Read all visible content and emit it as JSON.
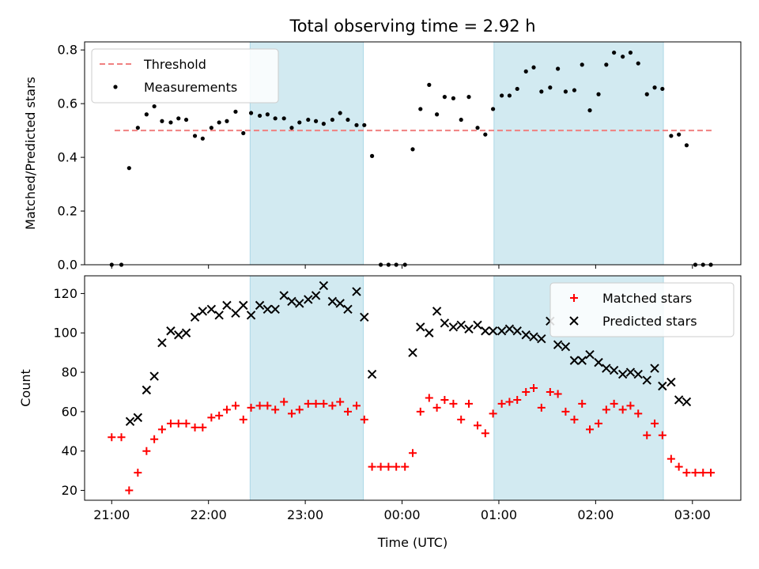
{
  "chart_data": {
    "type": "scatter",
    "title": "Total observing time = 2.92 h",
    "xlabel": "Time (UTC)",
    "x_ticks": [
      "21:00",
      "22:00",
      "23:00",
      "00:00",
      "01:00",
      "02:00",
      "03:00"
    ],
    "xlim": [
      -0.28,
      6.5
    ],
    "shaded_intervals": [
      [
        1.43,
        2.6
      ],
      [
        3.95,
        5.7
      ]
    ],
    "shade_color": "#add8e6",
    "panels": [
      {
        "ylabel": "Matched/Predicted stars",
        "ylim": [
          0,
          0.83
        ],
        "yticks": [
          "0.0",
          "0.2",
          "0.4",
          "0.6",
          "0.8"
        ],
        "threshold": {
          "name": "Threshold",
          "value": 0.5,
          "x_range": [
            0.03,
            6.2
          ],
          "color": "#f08080"
        },
        "series": [
          {
            "name": "Measurements",
            "marker": "dot",
            "color": "#000000",
            "points": [
              [
                0.0,
                0.0
              ],
              [
                0.1,
                0.0
              ],
              [
                0.18,
                0.36
              ],
              [
                0.27,
                0.51
              ],
              [
                0.36,
                0.56
              ],
              [
                0.44,
                0.59
              ],
              [
                0.52,
                0.535
              ],
              [
                0.61,
                0.53
              ],
              [
                0.69,
                0.545
              ],
              [
                0.77,
                0.54
              ],
              [
                0.86,
                0.48
              ],
              [
                0.94,
                0.47
              ],
              [
                1.03,
                0.51
              ],
              [
                1.11,
                0.53
              ],
              [
                1.19,
                0.535
              ],
              [
                1.28,
                0.57
              ],
              [
                1.36,
                0.49
              ],
              [
                1.44,
                0.565
              ],
              [
                1.53,
                0.555
              ],
              [
                1.61,
                0.56
              ],
              [
                1.69,
                0.545
              ],
              [
                1.78,
                0.545
              ],
              [
                1.86,
                0.51
              ],
              [
                1.94,
                0.53
              ],
              [
                2.03,
                0.54
              ],
              [
                2.11,
                0.535
              ],
              [
                2.19,
                0.525
              ],
              [
                2.28,
                0.54
              ],
              [
                2.36,
                0.565
              ],
              [
                2.44,
                0.54
              ],
              [
                2.53,
                0.52
              ],
              [
                2.61,
                0.52
              ],
              [
                2.69,
                0.405
              ],
              [
                2.78,
                0.0
              ],
              [
                2.86,
                0.0
              ],
              [
                2.94,
                0.0
              ],
              [
                3.03,
                0.0
              ],
              [
                3.11,
                0.43
              ],
              [
                3.19,
                0.58
              ],
              [
                3.28,
                0.67
              ],
              [
                3.36,
                0.56
              ],
              [
                3.44,
                0.625
              ],
              [
                3.53,
                0.62
              ],
              [
                3.61,
                0.54
              ],
              [
                3.69,
                0.625
              ],
              [
                3.78,
                0.51
              ],
              [
                3.86,
                0.485
              ],
              [
                3.94,
                0.58
              ],
              [
                4.03,
                0.63
              ],
              [
                4.11,
                0.63
              ],
              [
                4.19,
                0.655
              ],
              [
                4.28,
                0.72
              ],
              [
                4.36,
                0.735
              ],
              [
                4.44,
                0.645
              ],
              [
                4.53,
                0.66
              ],
              [
                4.61,
                0.73
              ],
              [
                4.69,
                0.645
              ],
              [
                4.78,
                0.65
              ],
              [
                4.86,
                0.745
              ],
              [
                4.94,
                0.575
              ],
              [
                5.03,
                0.635
              ],
              [
                5.11,
                0.745
              ],
              [
                5.19,
                0.79
              ],
              [
                5.28,
                0.775
              ],
              [
                5.36,
                0.79
              ],
              [
                5.44,
                0.75
              ],
              [
                5.53,
                0.635
              ],
              [
                5.61,
                0.66
              ],
              [
                5.69,
                0.655
              ],
              [
                5.78,
                0.48
              ],
              [
                5.86,
                0.485
              ],
              [
                5.94,
                0.445
              ],
              [
                6.03,
                0.0
              ],
              [
                6.11,
                0.0
              ],
              [
                6.19,
                0.0
              ]
            ]
          }
        ],
        "legend": {
          "placement": "upper-left",
          "entries": [
            "Threshold",
            "Measurements"
          ]
        }
      },
      {
        "ylabel": "Count",
        "ylim": [
          15,
          129
        ],
        "yticks": [
          "20",
          "40",
          "60",
          "80",
          "100",
          "120"
        ],
        "series": [
          {
            "name": "Matched stars",
            "marker": "plus",
            "color": "#ff0000",
            "points": [
              [
                0.0,
                47
              ],
              [
                0.1,
                47
              ],
              [
                0.18,
                20
              ],
              [
                0.27,
                29
              ],
              [
                0.36,
                40
              ],
              [
                0.44,
                46
              ],
              [
                0.52,
                51
              ],
              [
                0.61,
                54
              ],
              [
                0.69,
                54
              ],
              [
                0.77,
                54
              ],
              [
                0.86,
                52
              ],
              [
                0.94,
                52
              ],
              [
                1.03,
                57
              ],
              [
                1.11,
                58
              ],
              [
                1.19,
                61
              ],
              [
                1.28,
                63
              ],
              [
                1.36,
                56
              ],
              [
                1.44,
                62
              ],
              [
                1.53,
                63
              ],
              [
                1.61,
                63
              ],
              [
                1.69,
                61
              ],
              [
                1.78,
                65
              ],
              [
                1.86,
                59
              ],
              [
                1.94,
                61
              ],
              [
                2.03,
                64
              ],
              [
                2.11,
                64
              ],
              [
                2.19,
                64
              ],
              [
                2.28,
                63
              ],
              [
                2.36,
                65
              ],
              [
                2.44,
                60
              ],
              [
                2.53,
                63
              ],
              [
                2.61,
                56
              ],
              [
                2.69,
                32
              ],
              [
                2.78,
                32
              ],
              [
                2.86,
                32
              ],
              [
                2.94,
                32
              ],
              [
                3.03,
                32
              ],
              [
                3.11,
                39
              ],
              [
                3.19,
                60
              ],
              [
                3.28,
                67
              ],
              [
                3.36,
                62
              ],
              [
                3.44,
                66
              ],
              [
                3.53,
                64
              ],
              [
                3.61,
                56
              ],
              [
                3.69,
                64
              ],
              [
                3.78,
                53
              ],
              [
                3.86,
                49
              ],
              [
                3.94,
                59
              ],
              [
                4.03,
                64
              ],
              [
                4.11,
                65
              ],
              [
                4.19,
                66
              ],
              [
                4.28,
                70
              ],
              [
                4.36,
                72
              ],
              [
                4.44,
                62
              ],
              [
                4.53,
                70
              ],
              [
                4.61,
                69
              ],
              [
                4.69,
                60
              ],
              [
                4.78,
                56
              ],
              [
                4.86,
                64
              ],
              [
                4.94,
                51
              ],
              [
                5.03,
                54
              ],
              [
                5.11,
                61
              ],
              [
                5.19,
                64
              ],
              [
                5.28,
                61
              ],
              [
                5.36,
                63
              ],
              [
                5.44,
                59
              ],
              [
                5.53,
                48
              ],
              [
                5.61,
                54
              ],
              [
                5.69,
                48
              ],
              [
                5.78,
                36
              ],
              [
                5.86,
                32
              ],
              [
                5.94,
                29
              ],
              [
                6.03,
                29
              ],
              [
                6.11,
                29
              ],
              [
                6.19,
                29
              ]
            ]
          },
          {
            "name": "Predicted stars",
            "marker": "cross",
            "color": "#000000",
            "points": [
              [
                0.19,
                55
              ],
              [
                0.27,
                57
              ],
              [
                0.36,
                71
              ],
              [
                0.44,
                78
              ],
              [
                0.52,
                95
              ],
              [
                0.61,
                101
              ],
              [
                0.69,
                99
              ],
              [
                0.77,
                100
              ],
              [
                0.86,
                108
              ],
              [
                0.94,
                111
              ],
              [
                1.03,
                112
              ],
              [
                1.11,
                109
              ],
              [
                1.19,
                114
              ],
              [
                1.28,
                110
              ],
              [
                1.36,
                114
              ],
              [
                1.44,
                109
              ],
              [
                1.53,
                114
              ],
              [
                1.61,
                112
              ],
              [
                1.69,
                112
              ],
              [
                1.78,
                119
              ],
              [
                1.86,
                116
              ],
              [
                1.94,
                115
              ],
              [
                2.03,
                117
              ],
              [
                2.11,
                119
              ],
              [
                2.19,
                124
              ],
              [
                2.28,
                116
              ],
              [
                2.36,
                115
              ],
              [
                2.44,
                112
              ],
              [
                2.53,
                121
              ],
              [
                2.61,
                108
              ],
              [
                2.69,
                79
              ],
              [
                3.11,
                90
              ],
              [
                3.19,
                103
              ],
              [
                3.28,
                100
              ],
              [
                3.36,
                111
              ],
              [
                3.44,
                105
              ],
              [
                3.53,
                103
              ],
              [
                3.61,
                104
              ],
              [
                3.69,
                102
              ],
              [
                3.78,
                104
              ],
              [
                3.86,
                101
              ],
              [
                3.94,
                101
              ],
              [
                4.03,
                101
              ],
              [
                4.11,
                102
              ],
              [
                4.19,
                101
              ],
              [
                4.28,
                99
              ],
              [
                4.36,
                98
              ],
              [
                4.44,
                97
              ],
              [
                4.53,
                106
              ],
              [
                4.61,
                94
              ],
              [
                4.69,
                93
              ],
              [
                4.78,
                86
              ],
              [
                4.86,
                86
              ],
              [
                4.94,
                89
              ],
              [
                5.03,
                85
              ],
              [
                5.11,
                82
              ],
              [
                5.19,
                81
              ],
              [
                5.28,
                79
              ],
              [
                5.36,
                80
              ],
              [
                5.44,
                79
              ],
              [
                5.53,
                76
              ],
              [
                5.61,
                82
              ],
              [
                5.69,
                73
              ],
              [
                5.78,
                75
              ],
              [
                5.86,
                66
              ],
              [
                5.94,
                65
              ]
            ]
          }
        ],
        "legend": {
          "placement": "upper-right",
          "entries": [
            "Matched stars",
            "Predicted stars"
          ]
        }
      }
    ]
  }
}
